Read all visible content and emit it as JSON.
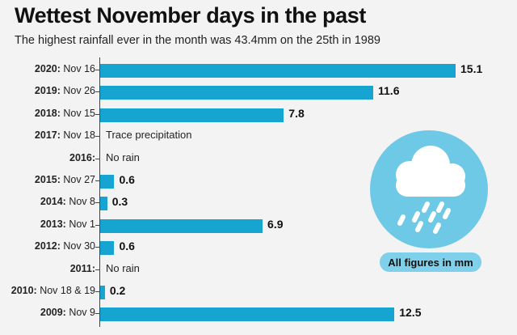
{
  "title": "Wettest November days in the past",
  "subtitle": "The highest rainfall ever in the month was 43.4mm on the 25th in 1989",
  "badge": "All figures in mm",
  "icons": {
    "weather": "cloud-rain-icon"
  },
  "colors": {
    "bar": "#15a5d0",
    "circle": "#6ec9e6",
    "badge": "#7fd0ea"
  },
  "chart_data": {
    "type": "bar",
    "orientation": "horizontal",
    "xlim": [
      0,
      15.1
    ],
    "rows": [
      {
        "year": "2020:",
        "date": "Nov 16",
        "value": 15.1,
        "value_label": "15.1",
        "note": ""
      },
      {
        "year": "2019:",
        "date": "Nov 26",
        "value": 11.6,
        "value_label": "11.6",
        "note": ""
      },
      {
        "year": "2018:",
        "date": "Nov 15",
        "value": 7.8,
        "value_label": "7.8",
        "note": ""
      },
      {
        "year": "2017:",
        "date": "Nov 18",
        "value": null,
        "value_label": "",
        "note": "Trace precipitation"
      },
      {
        "year": "2016:",
        "date": "",
        "value": null,
        "value_label": "",
        "note": "No  rain"
      },
      {
        "year": "2015:",
        "date": "Nov 27",
        "value": 0.6,
        "value_label": "0.6",
        "note": ""
      },
      {
        "year": "2014:",
        "date": "Nov 8",
        "value": 0.3,
        "value_label": "0.3",
        "note": ""
      },
      {
        "year": "2013:",
        "date": "Nov 1",
        "value": 6.9,
        "value_label": "6.9",
        "note": ""
      },
      {
        "year": "2012:",
        "date": "Nov 30",
        "value": 0.6,
        "value_label": "0.6",
        "note": ""
      },
      {
        "year": "2011:",
        "date": "",
        "value": null,
        "value_label": "",
        "note": "No  rain"
      },
      {
        "year": "2010:",
        "date": "Nov 18 & 19",
        "value": 0.2,
        "value_label": "0.2",
        "note": ""
      },
      {
        "year": "2009:",
        "date": "Nov 9",
        "value": 12.5,
        "value_label": "12.5",
        "note": ""
      }
    ]
  }
}
